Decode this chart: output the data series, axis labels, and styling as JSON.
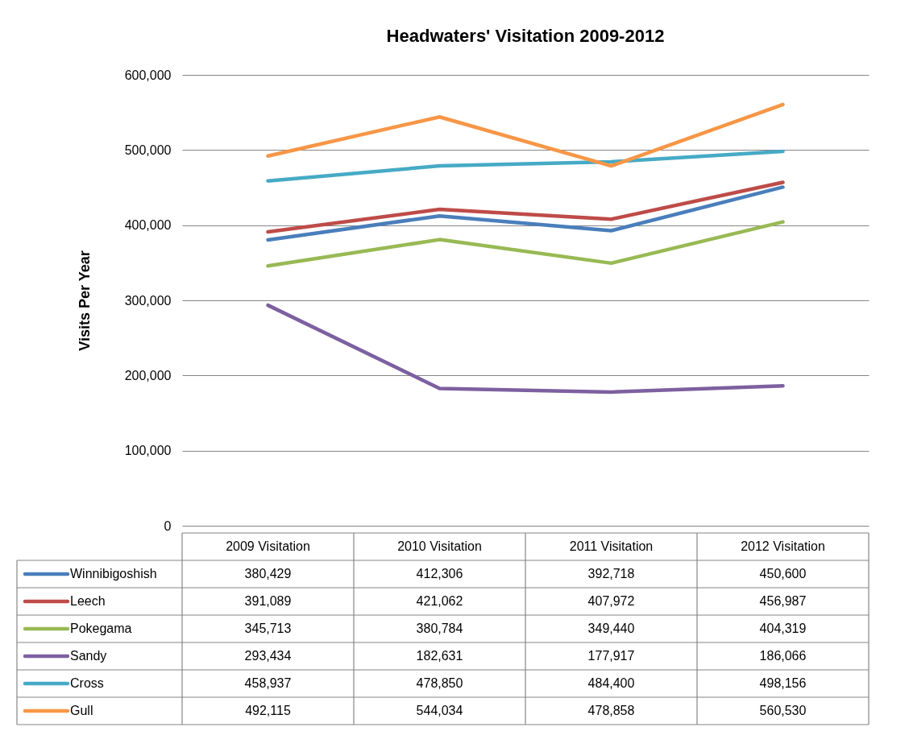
{
  "chart_data": {
    "type": "line",
    "title": "Headwaters' Visitation 2009-2012",
    "ylabel": "Visits Per Year",
    "categories": [
      "2009 Visitation",
      "2010 Visitation",
      "2011 Visitation",
      "2012 Visitation"
    ],
    "series": [
      {
        "name": "Winnibigoshish",
        "color": "#4a7ebb",
        "values": [
          380429,
          412306,
          392718,
          450600
        ],
        "value_labels": [
          "380,429",
          "412,306",
          "392,718",
          "450,600"
        ]
      },
      {
        "name": "Leech",
        "color": "#be4b48",
        "values": [
          391089,
          421062,
          407972,
          456987
        ],
        "value_labels": [
          "391,089",
          "421,062",
          "407,972",
          "456,987"
        ]
      },
      {
        "name": "Pokegama",
        "color": "#98b954",
        "values": [
          345713,
          380784,
          349440,
          404319
        ],
        "value_labels": [
          "345,713",
          "380,784",
          "349,440",
          "404,319"
        ]
      },
      {
        "name": "Sandy",
        "color": "#7d60a0",
        "values": [
          293434,
          182631,
          177917,
          186066
        ],
        "value_labels": [
          "293,434",
          "182,631",
          "177,917",
          "186,066"
        ]
      },
      {
        "name": "Cross",
        "color": "#46aac5",
        "values": [
          458937,
          478850,
          484400,
          498156
        ],
        "value_labels": [
          "458,937",
          "478,850",
          "484,400",
          "498,156"
        ]
      },
      {
        "name": "Gull",
        "color": "#f79646",
        "values": [
          492115,
          544034,
          478858,
          560530
        ],
        "value_labels": [
          "492,115",
          "544,034",
          "478,858",
          "560,530"
        ]
      }
    ],
    "ylim": [
      0,
      600000
    ],
    "yticks": [
      0,
      {
        "value": 100000,
        "label": "100,000"
      },
      {
        "value": 200000,
        "label": "200,000"
      },
      {
        "value": 300000,
        "label": "300,000"
      },
      {
        "value": 400000,
        "label": "400,000"
      },
      {
        "value": 500000,
        "label": "500,000"
      },
      {
        "value": 600000,
        "label": "600,000"
      }
    ],
    "grid": "y",
    "legend": "bottom left"
  }
}
